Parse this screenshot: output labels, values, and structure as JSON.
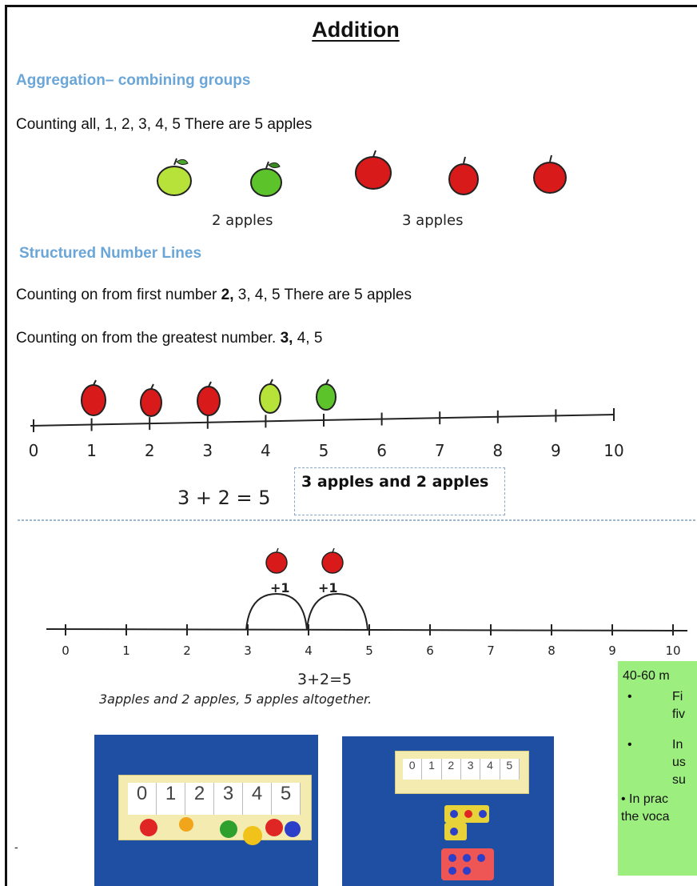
{
  "title": "Addition",
  "section1": {
    "heading": "Aggregation– combining groups",
    "counting_all": "Counting all,   1, 2, 3, 4, 5      There are 5 apples",
    "caption_left": "2 apples",
    "caption_right": "3 apples"
  },
  "section2": {
    "heading": "Structured Number Lines",
    "line1_prefix": "Counting on from first number   ",
    "line1_bold": "2,",
    "line1_rest": " 3, 4, 5 There are 5 apples",
    "line2_prefix": "Counting on from the greatest number.   ",
    "line2_bold": "3,",
    "line2_rest": " 4, 5"
  },
  "numberline1": {
    "ticks": [
      "0",
      "1",
      "2",
      "3",
      "4",
      "5",
      "6",
      "7",
      "8",
      "9",
      "10"
    ],
    "equation": "3 + 2 = 5",
    "box_text": "3 apples and 2 apples"
  },
  "numberline2": {
    "ticks": [
      "0",
      "1",
      "2",
      "3",
      "4",
      "5",
      "6",
      "7",
      "8",
      "9",
      "10"
    ],
    "jump_label_1": "+1",
    "jump_label_2": "+1",
    "equation": "3+2=5",
    "sentence": "3apples and 2 apples, 5 apples altogether."
  },
  "photos": {
    "photo1_digits": [
      "0",
      "1",
      "2",
      "3",
      "4",
      "5"
    ],
    "photo2_digits": [
      "0",
      "1",
      "2",
      "3",
      "4",
      "5"
    ]
  },
  "green_box": {
    "line1": "40-60 m",
    "bullet1_a": "Fi",
    "bullet1_b": "fiv",
    "bullet2_a": "In",
    "bullet2_b": "us",
    "bullet2_c": "su",
    "line_practice": "• In prac",
    "line_vocab": "the voca"
  },
  "colors": {
    "heading_blue": "#6aa6d8",
    "apple_red": "#d81a1a",
    "apple_green": "#5cc32b",
    "apple_lightgreen": "#b6e23a",
    "green_box": "#9cef7e",
    "photo_blue": "#1f4fa3"
  }
}
